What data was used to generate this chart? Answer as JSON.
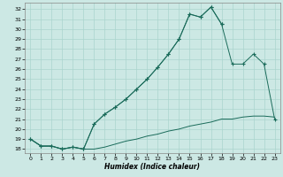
{
  "xlabel": "Humidex (Indice chaleur)",
  "background_color": "#cce8e4",
  "line_color": "#1a6b5a",
  "grid_color": "#aad4ce",
  "x_ticks": [
    0,
    1,
    2,
    3,
    4,
    5,
    6,
    7,
    8,
    9,
    10,
    11,
    12,
    13,
    14,
    15,
    16,
    17,
    18,
    19,
    20,
    21,
    22,
    23
  ],
  "y_ticks": [
    18,
    19,
    20,
    21,
    22,
    23,
    24,
    25,
    26,
    27,
    28,
    29,
    30,
    31,
    32
  ],
  "ylim": [
    17.6,
    32.6
  ],
  "xlim": [
    -0.5,
    23.5
  ],
  "series1_x": [
    0,
    1,
    2,
    3,
    4,
    5,
    6,
    7,
    8,
    9,
    10,
    11,
    12,
    13,
    14,
    15,
    16,
    17,
    18,
    19,
    20,
    21,
    22,
    23
  ],
  "series1_y": [
    19.0,
    18.3,
    18.3,
    18.0,
    18.2,
    18.0,
    18.0,
    18.2,
    18.5,
    18.8,
    19.0,
    19.3,
    19.5,
    19.8,
    20.0,
    20.3,
    20.5,
    20.7,
    21.0,
    21.0,
    21.2,
    21.3,
    21.3,
    21.2
  ],
  "series2_x": [
    0,
    1,
    2,
    3,
    4,
    5,
    6,
    7,
    8,
    9,
    10,
    11,
    12,
    13,
    14,
    15,
    16,
    17,
    18,
    19,
    20,
    21,
    22,
    23
  ],
  "series2_y": [
    19.0,
    18.3,
    18.3,
    18.0,
    18.2,
    18.0,
    20.5,
    21.5,
    22.2,
    23.0,
    24.0,
    25.0,
    26.2,
    27.5,
    29.0,
    31.5,
    31.2,
    32.2,
    30.5,
    null,
    null,
    null,
    null,
    null
  ],
  "series3_x": [
    0,
    1,
    2,
    3,
    4,
    5,
    6,
    7,
    8,
    9,
    10,
    11,
    12,
    13,
    14,
    15,
    16,
    17,
    18,
    19,
    20,
    21,
    22,
    23
  ],
  "series3_y": [
    19.0,
    18.3,
    18.3,
    18.0,
    18.2,
    18.0,
    20.5,
    21.5,
    22.2,
    23.0,
    24.0,
    25.0,
    26.2,
    27.5,
    29.0,
    31.5,
    31.2,
    32.2,
    30.5,
    26.5,
    26.5,
    27.5,
    26.5,
    21.0
  ]
}
